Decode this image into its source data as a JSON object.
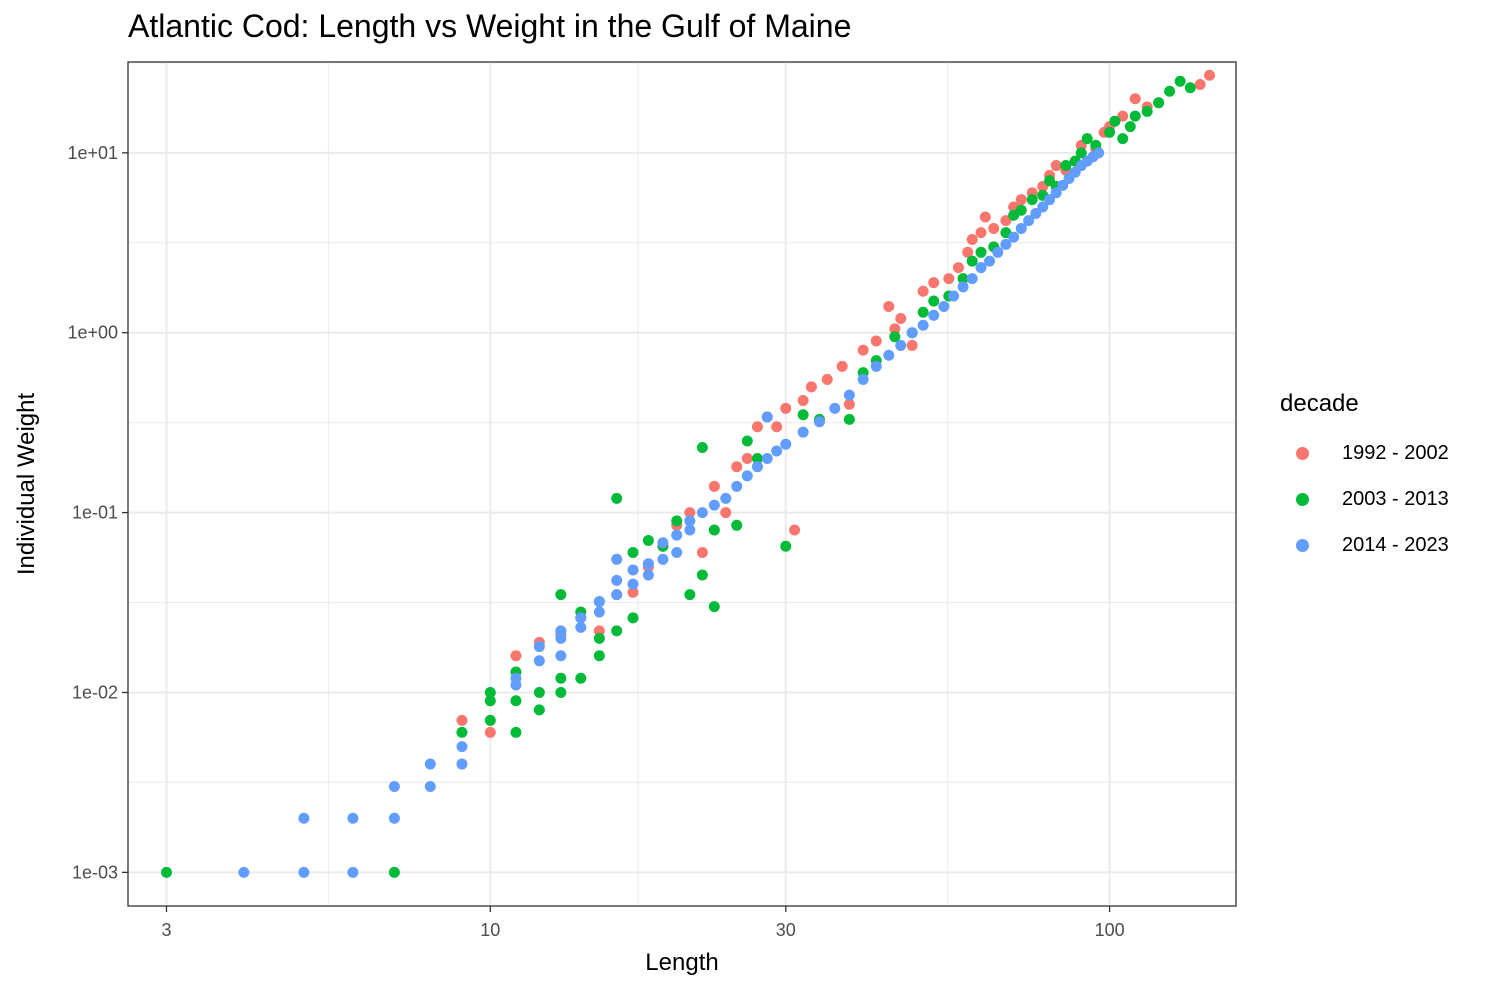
{
  "chart_data": {
    "type": "scatter",
    "title": "Atlantic Cod: Length vs Weight in the Gulf of Maine",
    "xlabel": "Length",
    "ylabel": "Individual Weight",
    "x_scale": "log10",
    "y_scale": "log10",
    "xlim": [
      2.6,
      160
    ],
    "ylim": [
      0.00065,
      32
    ],
    "x_ticks": [
      3,
      10,
      30,
      100
    ],
    "x_tick_labels": [
      "3",
      "10",
      "30",
      "100"
    ],
    "y_ticks": [
      0.001,
      0.01,
      0.1,
      1,
      10
    ],
    "y_tick_labels": [
      "1e-03",
      "1e-02",
      "1e-01",
      "1e+00",
      "1e+01"
    ],
    "grid": true,
    "legend": {
      "title": "decade",
      "position": "right"
    },
    "series": [
      {
        "name": "1992 - 2002",
        "color": "#F8766D",
        "points": [
          [
            9,
            0.007
          ],
          [
            10,
            0.006
          ],
          [
            11,
            0.016
          ],
          [
            12,
            0.019
          ],
          [
            13,
            0.021
          ],
          [
            14,
            0.026
          ],
          [
            15,
            0.022
          ],
          [
            16,
            0.035
          ],
          [
            17,
            0.036
          ],
          [
            18,
            0.05
          ],
          [
            19,
            0.065
          ],
          [
            20,
            0.085
          ],
          [
            21,
            0.1
          ],
          [
            22,
            0.06
          ],
          [
            23,
            0.14
          ],
          [
            24,
            0.1
          ],
          [
            25,
            0.18
          ],
          [
            26,
            0.2
          ],
          [
            27,
            0.3
          ],
          [
            28,
            0.34
          ],
          [
            29,
            0.3
          ],
          [
            30,
            0.38
          ],
          [
            31,
            0.08
          ],
          [
            32,
            0.42
          ],
          [
            33,
            0.5
          ],
          [
            35,
            0.55
          ],
          [
            37,
            0.65
          ],
          [
            38,
            0.4
          ],
          [
            40,
            0.8
          ],
          [
            42,
            0.9
          ],
          [
            44,
            1.4
          ],
          [
            45,
            1.05
          ],
          [
            46,
            1.2
          ],
          [
            48,
            0.85
          ],
          [
            50,
            1.7
          ],
          [
            52,
            1.9
          ],
          [
            55,
            2.0
          ],
          [
            57,
            2.3
          ],
          [
            59,
            2.8
          ],
          [
            60,
            3.3
          ],
          [
            62,
            3.6
          ],
          [
            63,
            4.4
          ],
          [
            65,
            3.8
          ],
          [
            68,
            4.2
          ],
          [
            70,
            5.0
          ],
          [
            72,
            5.5
          ],
          [
            75,
            6.0
          ],
          [
            78,
            6.5
          ],
          [
            80,
            7.5
          ],
          [
            82,
            8.5
          ],
          [
            85,
            8.0
          ],
          [
            88,
            9.0
          ],
          [
            90,
            11.0
          ],
          [
            95,
            10.5
          ],
          [
            98,
            13.0
          ],
          [
            100,
            14.0
          ],
          [
            105,
            16.0
          ],
          [
            110,
            20.0
          ],
          [
            115,
            18.0
          ],
          [
            120,
            19.0
          ],
          [
            140,
            24.0
          ],
          [
            145,
            27.0
          ]
        ]
      },
      {
        "name": "2003 - 2013",
        "color": "#00BA38",
        "points": [
          [
            3,
            0.001
          ],
          [
            7,
            0.001
          ],
          [
            9,
            0.006
          ],
          [
            10,
            0.01
          ],
          [
            10,
            0.009
          ],
          [
            10,
            0.007
          ],
          [
            11,
            0.009
          ],
          [
            11,
            0.006
          ],
          [
            11,
            0.013
          ],
          [
            12,
            0.01
          ],
          [
            12,
            0.008
          ],
          [
            13,
            0.012
          ],
          [
            13,
            0.035
          ],
          [
            13,
            0.01
          ],
          [
            14,
            0.012
          ],
          [
            14,
            0.028
          ],
          [
            15,
            0.016
          ],
          [
            15,
            0.02
          ],
          [
            15,
            0.032
          ],
          [
            16,
            0.12
          ],
          [
            16,
            0.022
          ],
          [
            17,
            0.06
          ],
          [
            17,
            0.026
          ],
          [
            18,
            0.07
          ],
          [
            19,
            0.065
          ],
          [
            20,
            0.09
          ],
          [
            21,
            0.035
          ],
          [
            22,
            0.23
          ],
          [
            22,
            0.045
          ],
          [
            23,
            0.03
          ],
          [
            23,
            0.08
          ],
          [
            25,
            0.085
          ],
          [
            26,
            0.25
          ],
          [
            27,
            0.2
          ],
          [
            30,
            0.065
          ],
          [
            32,
            0.35
          ],
          [
            34,
            0.33
          ],
          [
            38,
            0.33
          ],
          [
            40,
            0.6
          ],
          [
            42,
            0.7
          ],
          [
            45,
            0.95
          ],
          [
            48,
            1.0
          ],
          [
            50,
            1.3
          ],
          [
            52,
            1.5
          ],
          [
            55,
            1.6
          ],
          [
            58,
            2.0
          ],
          [
            60,
            2.5
          ],
          [
            62,
            2.8
          ],
          [
            65,
            3.0
          ],
          [
            68,
            3.6
          ],
          [
            70,
            4.5
          ],
          [
            72,
            4.8
          ],
          [
            75,
            5.5
          ],
          [
            78,
            5.8
          ],
          [
            80,
            7.0
          ],
          [
            82,
            6.5
          ],
          [
            85,
            8.5
          ],
          [
            88,
            9.0
          ],
          [
            90,
            10.0
          ],
          [
            92,
            12.0
          ],
          [
            95,
            11.0
          ],
          [
            100,
            13.0
          ],
          [
            102,
            15.0
          ],
          [
            105,
            12.0
          ],
          [
            108,
            14.0
          ],
          [
            110,
            16.0
          ],
          [
            115,
            17.0
          ],
          [
            120,
            19.0
          ],
          [
            125,
            22.0
          ],
          [
            130,
            25.0
          ],
          [
            135,
            23.0
          ]
        ]
      },
      {
        "name": "2014 - 2023",
        "color": "#619CFF",
        "points": [
          [
            4,
            0.001
          ],
          [
            5,
            0.001
          ],
          [
            5,
            0.002
          ],
          [
            6,
            0.001
          ],
          [
            6,
            0.002
          ],
          [
            7,
            0.002
          ],
          [
            7,
            0.003
          ],
          [
            8,
            0.003
          ],
          [
            8,
            0.004
          ],
          [
            9,
            0.004
          ],
          [
            9,
            0.005
          ],
          [
            11,
            0.011
          ],
          [
            11,
            0.012
          ],
          [
            12,
            0.015
          ],
          [
            12,
            0.018
          ],
          [
            13,
            0.016
          ],
          [
            13,
            0.02
          ],
          [
            13,
            0.022
          ],
          [
            14,
            0.023
          ],
          [
            14,
            0.026
          ],
          [
            15,
            0.028
          ],
          [
            15,
            0.032
          ],
          [
            16,
            0.035
          ],
          [
            16,
            0.042
          ],
          [
            16,
            0.055
          ],
          [
            17,
            0.04
          ],
          [
            17,
            0.048
          ],
          [
            18,
            0.045
          ],
          [
            18,
            0.052
          ],
          [
            19,
            0.055
          ],
          [
            19,
            0.068
          ],
          [
            20,
            0.06
          ],
          [
            20,
            0.075
          ],
          [
            21,
            0.08
          ],
          [
            21,
            0.09
          ],
          [
            22,
            0.1
          ],
          [
            23,
            0.11
          ],
          [
            24,
            0.12
          ],
          [
            25,
            0.14
          ],
          [
            26,
            0.16
          ],
          [
            27,
            0.18
          ],
          [
            28,
            0.2
          ],
          [
            28,
            0.34
          ],
          [
            29,
            0.22
          ],
          [
            30,
            0.24
          ],
          [
            32,
            0.28
          ],
          [
            34,
            0.32
          ],
          [
            36,
            0.38
          ],
          [
            38,
            0.45
          ],
          [
            40,
            0.55
          ],
          [
            42,
            0.65
          ],
          [
            44,
            0.75
          ],
          [
            46,
            0.85
          ],
          [
            48,
            1.0
          ],
          [
            50,
            1.1
          ],
          [
            52,
            1.25
          ],
          [
            54,
            1.4
          ],
          [
            56,
            1.6
          ],
          [
            58,
            1.8
          ],
          [
            60,
            2.0
          ],
          [
            62,
            2.3
          ],
          [
            64,
            2.5
          ],
          [
            66,
            2.8
          ],
          [
            68,
            3.1
          ],
          [
            70,
            3.4
          ],
          [
            72,
            3.8
          ],
          [
            74,
            4.2
          ],
          [
            76,
            4.6
          ],
          [
            78,
            5.0
          ],
          [
            80,
            5.5
          ],
          [
            82,
            6.0
          ],
          [
            84,
            6.6
          ],
          [
            86,
            7.2
          ],
          [
            88,
            7.8
          ],
          [
            90,
            8.5
          ],
          [
            92,
            9.0
          ],
          [
            94,
            9.5
          ],
          [
            96,
            10.0
          ]
        ]
      }
    ]
  }
}
